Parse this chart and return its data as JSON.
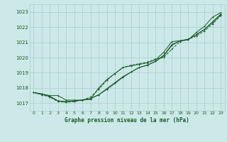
{
  "title": "Graphe pression niveau de la mer (hPa)",
  "bg_color": "#cce8e8",
  "grid_color": "#aacfcf",
  "line_color": "#1a5c2a",
  "text_color": "#1a5c2a",
  "xlim": [
    -0.5,
    23.5
  ],
  "ylim": [
    1016.5,
    1023.5
  ],
  "yticks": [
    1017,
    1018,
    1019,
    1020,
    1021,
    1022,
    1023
  ],
  "xticks": [
    0,
    1,
    2,
    3,
    4,
    5,
    6,
    7,
    8,
    9,
    10,
    11,
    12,
    13,
    14,
    15,
    16,
    17,
    18,
    19,
    20,
    21,
    22,
    23
  ],
  "line1": [
    1017.7,
    1017.6,
    1017.5,
    1017.5,
    1017.2,
    1017.2,
    1017.2,
    1017.25,
    1018.0,
    1018.55,
    1018.95,
    1019.35,
    1019.45,
    1019.55,
    1019.65,
    1019.85,
    1020.35,
    1021.05,
    1021.1,
    1021.15,
    1021.65,
    1022.05,
    1022.65,
    1022.95
  ],
  "line2": [
    1017.7,
    1017.6,
    1017.45,
    1017.15,
    1017.1,
    1017.15,
    1017.2,
    1017.3,
    1017.55,
    1017.95,
    1018.35,
    1018.75,
    1019.05,
    1019.35,
    1019.5,
    1019.75,
    1020.15,
    1020.85,
    1021.1,
    1021.2,
    1021.5,
    1021.85,
    1022.35,
    1022.85
  ],
  "line3": [
    1017.7,
    1017.6,
    1017.45,
    1017.15,
    1017.1,
    1017.15,
    1017.2,
    1017.3,
    1017.55,
    1017.9,
    1018.3,
    1018.7,
    1019.05,
    1019.35,
    1019.5,
    1019.75,
    1020.1,
    1020.8,
    1021.1,
    1021.2,
    1021.5,
    1021.85,
    1022.3,
    1022.8
  ],
  "line4": [
    1017.7,
    1017.55,
    1017.4,
    1017.1,
    1017.05,
    1017.1,
    1017.2,
    1017.4,
    1017.9,
    1018.5,
    1018.95,
    1019.35,
    1019.5,
    1019.6,
    1019.7,
    1019.9,
    1020.0,
    1020.55,
    1021.05,
    1021.2,
    1021.4,
    1021.75,
    1022.2,
    1022.75
  ]
}
